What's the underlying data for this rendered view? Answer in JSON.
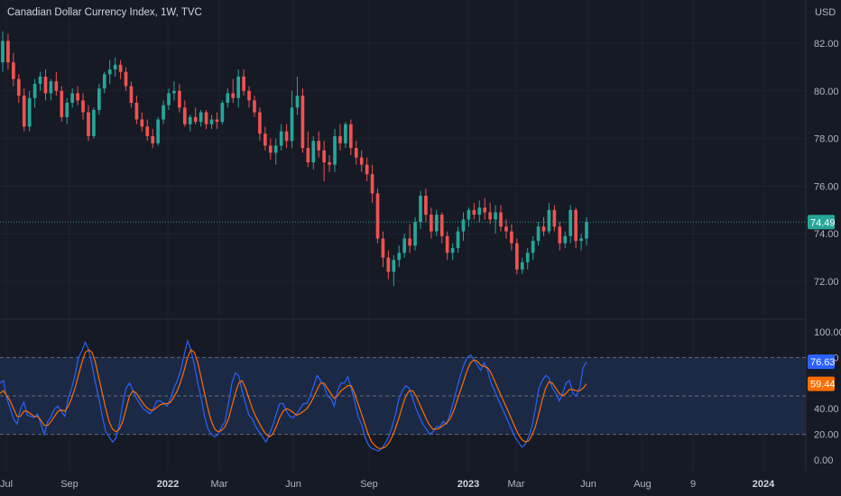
{
  "header": {
    "title": "Canadian Dollar Currency Index, 1W, TVC",
    "currency": "USD"
  },
  "colors": {
    "background": "#161a25",
    "grid": "#2a2e39",
    "up": "#26a69a",
    "down": "#ef5350",
    "k_line": "#2962ff",
    "d_line": "#ff6d00",
    "band_fill": "#1c2d4a",
    "last_price_line": "#26a69a"
  },
  "chart_data": [
    {
      "type": "candlestick",
      "series_name": "Canadian Dollar Currency Index",
      "price_scale": "USD",
      "ylim": [
        70.8,
        83.2
      ],
      "y_ticks": [
        "82.00",
        "80.00",
        "78.00",
        "76.00",
        "74.00",
        "72.00"
      ],
      "last_price": "74.49",
      "last_price_value": 74.49,
      "candles": [
        [
          81.2,
          82.5,
          80.8,
          82.1
        ],
        [
          82.1,
          82.4,
          80.9,
          81.2
        ],
        [
          81.2,
          81.6,
          80.2,
          80.5
        ],
        [
          80.5,
          80.7,
          79.5,
          79.8
        ],
        [
          79.8,
          80.1,
          78.3,
          78.5
        ],
        [
          78.5,
          80.0,
          78.3,
          79.7
        ],
        [
          79.7,
          80.5,
          79.3,
          80.3
        ],
        [
          80.3,
          80.8,
          80.0,
          80.6
        ],
        [
          80.6,
          80.9,
          79.6,
          79.9
        ],
        [
          79.9,
          80.5,
          79.6,
          80.4
        ],
        [
          80.4,
          80.8,
          79.8,
          80.0
        ],
        [
          80.0,
          80.2,
          78.7,
          78.9
        ],
        [
          78.9,
          79.7,
          78.6,
          79.5
        ],
        [
          79.5,
          80.1,
          79.3,
          79.9
        ],
        [
          79.9,
          80.2,
          79.4,
          79.6
        ],
        [
          79.6,
          79.9,
          78.8,
          79.1
        ],
        [
          79.1,
          79.4,
          77.9,
          78.1
        ],
        [
          78.1,
          79.3,
          78.0,
          79.2
        ],
        [
          79.2,
          80.3,
          79.0,
          80.1
        ],
        [
          80.1,
          80.8,
          79.9,
          80.7
        ],
        [
          80.7,
          81.3,
          80.3,
          80.9
        ],
        [
          80.9,
          81.4,
          80.6,
          81.1
        ],
        [
          81.1,
          81.3,
          80.5,
          80.8
        ],
        [
          80.8,
          81.0,
          80.0,
          80.2
        ],
        [
          80.2,
          80.4,
          79.3,
          79.5
        ],
        [
          79.5,
          79.8,
          78.6,
          78.8
        ],
        [
          78.8,
          79.1,
          78.3,
          78.5
        ],
        [
          78.5,
          78.8,
          77.9,
          78.1
        ],
        [
          78.1,
          78.4,
          77.6,
          77.8
        ],
        [
          77.8,
          78.9,
          77.7,
          78.8
        ],
        [
          78.8,
          79.6,
          78.6,
          79.4
        ],
        [
          79.4,
          80.1,
          79.2,
          79.9
        ],
        [
          79.9,
          80.4,
          79.6,
          80.0
        ],
        [
          80.0,
          80.3,
          79.1,
          79.3
        ],
        [
          79.3,
          79.6,
          78.5,
          78.6
        ],
        [
          78.6,
          79.0,
          78.3,
          78.9
        ],
        [
          78.9,
          79.3,
          78.6,
          78.7
        ],
        [
          78.7,
          79.2,
          78.5,
          79.1
        ],
        [
          79.1,
          79.2,
          78.4,
          78.6
        ],
        [
          78.6,
          79.0,
          78.4,
          78.8
        ],
        [
          78.8,
          79.1,
          78.4,
          78.7
        ],
        [
          78.7,
          79.6,
          78.6,
          79.5
        ],
        [
          79.5,
          80.1,
          79.3,
          79.9
        ],
        [
          79.9,
          80.5,
          79.5,
          79.7
        ],
        [
          79.7,
          80.9,
          79.3,
          80.6
        ],
        [
          80.6,
          80.9,
          79.8,
          80.0
        ],
        [
          80.0,
          80.2,
          79.3,
          79.6
        ],
        [
          79.6,
          79.8,
          78.9,
          79.1
        ],
        [
          79.1,
          79.3,
          77.9,
          78.2
        ],
        [
          78.2,
          78.5,
          77.5,
          77.7
        ],
        [
          77.7,
          78.0,
          77.1,
          77.4
        ],
        [
          77.4,
          78.0,
          76.9,
          77.7
        ],
        [
          77.7,
          78.6,
          77.5,
          78.3
        ],
        [
          78.3,
          78.6,
          77.6,
          77.9
        ],
        [
          77.9,
          80.0,
          77.6,
          79.3
        ],
        [
          79.3,
          80.6,
          79.0,
          79.8
        ],
        [
          79.8,
          80.1,
          77.4,
          77.6
        ],
        [
          77.6,
          78.3,
          76.8,
          77.0
        ],
        [
          77.0,
          78.1,
          76.7,
          77.9
        ],
        [
          77.9,
          78.3,
          77.2,
          77.5
        ],
        [
          77.5,
          77.9,
          76.2,
          77.0
        ],
        [
          77.0,
          77.3,
          76.6,
          76.9
        ],
        [
          76.9,
          78.4,
          76.6,
          78.1
        ],
        [
          78.1,
          78.6,
          77.5,
          77.8
        ],
        [
          77.8,
          78.7,
          77.6,
          78.6
        ],
        [
          78.6,
          78.8,
          77.3,
          77.6
        ],
        [
          77.6,
          77.9,
          76.9,
          77.2
        ],
        [
          77.2,
          77.5,
          76.6,
          76.9
        ],
        [
          76.9,
          77.2,
          76.2,
          76.5
        ],
        [
          76.5,
          76.9,
          75.3,
          75.7
        ],
        [
          75.7,
          75.9,
          73.6,
          73.8
        ],
        [
          73.8,
          74.1,
          72.6,
          73.0
        ],
        [
          73.0,
          73.3,
          72.1,
          72.4
        ],
        [
          72.4,
          73.1,
          71.8,
          72.9
        ],
        [
          72.9,
          73.5,
          72.6,
          73.2
        ],
        [
          73.2,
          74.0,
          73.0,
          73.8
        ],
        [
          73.8,
          74.4,
          73.2,
          73.5
        ],
        [
          73.5,
          74.7,
          73.3,
          74.5
        ],
        [
          74.5,
          75.8,
          74.2,
          75.6
        ],
        [
          75.6,
          75.9,
          74.5,
          74.8
        ],
        [
          74.8,
          75.1,
          73.8,
          74.1
        ],
        [
          74.1,
          75.0,
          73.9,
          74.8
        ],
        [
          74.8,
          74.9,
          73.6,
          73.9
        ],
        [
          73.9,
          74.1,
          72.9,
          73.2
        ],
        [
          73.2,
          73.6,
          72.9,
          73.4
        ],
        [
          73.4,
          74.3,
          73.2,
          74.1
        ],
        [
          74.1,
          74.9,
          73.7,
          74.6
        ],
        [
          74.6,
          75.1,
          74.3,
          75.0
        ],
        [
          75.0,
          75.3,
          74.6,
          74.8
        ],
        [
          74.8,
          75.4,
          74.5,
          75.1
        ],
        [
          75.1,
          75.5,
          74.6,
          74.9
        ],
        [
          74.9,
          75.3,
          74.4,
          74.6
        ],
        [
          74.6,
          75.2,
          74.0,
          74.9
        ],
        [
          74.9,
          75.2,
          74.1,
          74.3
        ],
        [
          74.3,
          74.6,
          73.8,
          74.1
        ],
        [
          74.1,
          74.4,
          73.3,
          73.6
        ],
        [
          73.6,
          73.8,
          72.3,
          72.5
        ],
        [
          72.5,
          73.0,
          72.3,
          72.8
        ],
        [
          72.8,
          73.4,
          72.5,
          73.2
        ],
        [
          73.2,
          73.9,
          72.9,
          73.7
        ],
        [
          73.7,
          74.5,
          73.5,
          74.3
        ],
        [
          74.3,
          74.7,
          73.9,
          74.1
        ],
        [
          74.1,
          75.3,
          74.0,
          75.0
        ],
        [
          75.0,
          75.2,
          74.1,
          74.3
        ],
        [
          74.3,
          74.5,
          73.3,
          73.6
        ],
        [
          73.6,
          74.1,
          73.4,
          73.9
        ],
        [
          73.9,
          75.2,
          73.6,
          75.0
        ],
        [
          75.0,
          75.1,
          73.4,
          73.7
        ],
        [
          73.7,
          74.0,
          73.3,
          73.8
        ],
        [
          73.8,
          74.7,
          73.5,
          74.49
        ]
      ]
    },
    {
      "type": "line",
      "indicator": "oscillator",
      "ylim": [
        -5,
        105
      ],
      "y_ticks": [
        "100.00",
        "80.00",
        "40.00",
        "20.00",
        "0.00"
      ],
      "upper_band": 80,
      "middle_band": 50,
      "lower_band": 20,
      "series": [
        {
          "color": "#2962ff",
          "last_label": "76.63",
          "values": [
            60,
            62,
            48,
            40,
            32,
            28,
            40,
            45,
            35,
            34,
            33,
            36,
            28,
            20,
            30,
            34,
            40,
            42,
            38,
            34,
            48,
            56,
            66,
            80,
            85,
            92,
            86,
            74,
            60,
            48,
            34,
            22,
            18,
            14,
            17,
            28,
            44,
            56,
            60,
            54,
            48,
            44,
            40,
            38,
            36,
            40,
            46,
            46,
            44,
            42,
            48,
            56,
            62,
            70,
            82,
            93,
            86,
            74,
            60,
            48,
            34,
            24,
            20,
            18,
            20,
            26,
            30,
            44,
            60,
            68,
            66,
            54,
            44,
            35,
            32,
            26,
            22,
            18,
            14,
            20,
            27,
            36,
            44,
            44,
            38,
            34,
            33,
            36,
            40,
            44,
            44,
            50,
            58,
            66,
            62,
            58,
            50,
            48,
            42,
            54,
            60,
            60,
            65,
            56,
            46,
            34,
            28,
            18,
            12,
            9,
            8,
            7,
            9,
            13,
            18,
            26,
            36,
            48,
            54,
            58,
            56,
            48,
            40,
            34,
            28,
            24,
            20,
            22,
            26,
            26,
            30,
            28,
            36,
            46,
            56,
            66,
            74,
            80,
            82,
            78,
            74,
            70,
            76,
            70,
            60,
            54,
            48,
            42,
            36,
            30,
            24,
            18,
            14,
            10,
            12,
            18,
            26,
            40,
            56,
            62,
            66,
            64,
            56,
            52,
            46,
            52,
            60,
            62,
            52,
            50,
            56,
            72,
            76.63
          ]
        },
        {
          "color": "#ff6d00",
          "last_label": "59.44",
          "values": [
            52,
            54,
            50,
            46,
            40,
            34,
            34,
            38,
            38,
            36,
            34,
            34,
            31,
            27,
            27,
            30,
            34,
            38,
            39,
            38,
            42,
            48,
            56,
            66,
            76,
            84,
            86,
            84,
            76,
            64,
            52,
            40,
            30,
            24,
            22,
            24,
            30,
            40,
            50,
            54,
            52,
            48,
            44,
            41,
            39,
            39,
            41,
            43,
            44,
            44,
            45,
            49,
            54,
            61,
            70,
            80,
            86,
            84,
            76,
            64,
            52,
            40,
            30,
            24,
            22,
            23,
            26,
            32,
            42,
            52,
            60,
            62,
            56,
            48,
            40,
            34,
            29,
            24,
            20,
            18,
            20,
            26,
            33,
            38,
            40,
            39,
            37,
            35,
            36,
            38,
            40,
            44,
            49,
            55,
            60,
            60,
            56,
            52,
            48,
            50,
            54,
            56,
            58,
            58,
            52,
            44,
            36,
            28,
            20,
            14,
            11,
            9,
            9,
            10,
            13,
            18,
            25,
            33,
            42,
            50,
            54,
            54,
            50,
            44,
            38,
            32,
            27,
            24,
            24,
            25,
            27,
            29,
            32,
            38,
            46,
            54,
            62,
            70,
            76,
            78,
            77,
            74,
            73,
            72,
            68,
            62,
            56,
            50,
            44,
            38,
            32,
            26,
            20,
            16,
            14,
            15,
            19,
            26,
            36,
            47,
            56,
            61,
            60,
            56,
            52,
            50,
            52,
            55,
            55,
            54,
            54,
            56,
            59.44
          ]
        }
      ]
    }
  ],
  "x_axis": {
    "labels": [
      "Jul",
      "Sep",
      "2022",
      "Mar",
      "Jun",
      "Sep",
      "2023",
      "Mar",
      "Jun",
      "Aug",
      "9",
      "2024"
    ],
    "bold": [
      false,
      false,
      true,
      false,
      false,
      false,
      true,
      false,
      false,
      false,
      false,
      true
    ]
  }
}
